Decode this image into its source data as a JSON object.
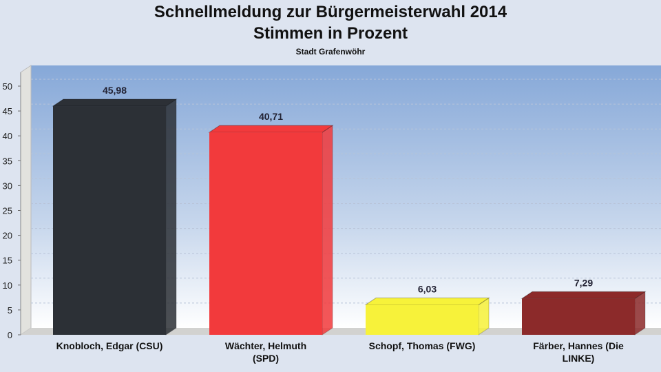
{
  "chart_data": {
    "type": "bar",
    "title": "Schnellmeldung zur Bürgermeisterwahl 2014",
    "subtitle": "Stimmen in Prozent",
    "subsubtitle": "Stadt Grafenwöhr",
    "categories": [
      [
        "Knobloch, Edgar (CSU)"
      ],
      [
        "Wächter, Helmuth",
        "(SPD)"
      ],
      [
        "Schopf, Thomas (FWG)"
      ],
      [
        "Färber, Hannes (Die",
        "LINKE)"
      ]
    ],
    "values": [
      45.98,
      40.71,
      6.03,
      7.29
    ],
    "value_labels": [
      "45,98",
      "40,71",
      "6,03",
      "7,29"
    ],
    "colors": [
      "#2c3036",
      "#f23a3c",
      "#f7f23a",
      "#8c2a2a"
    ],
    "ylim": [
      0,
      50
    ],
    "yticks": [
      0,
      5,
      10,
      15,
      20,
      25,
      30,
      35,
      40,
      45,
      50
    ],
    "grid": true,
    "style": "3d"
  }
}
